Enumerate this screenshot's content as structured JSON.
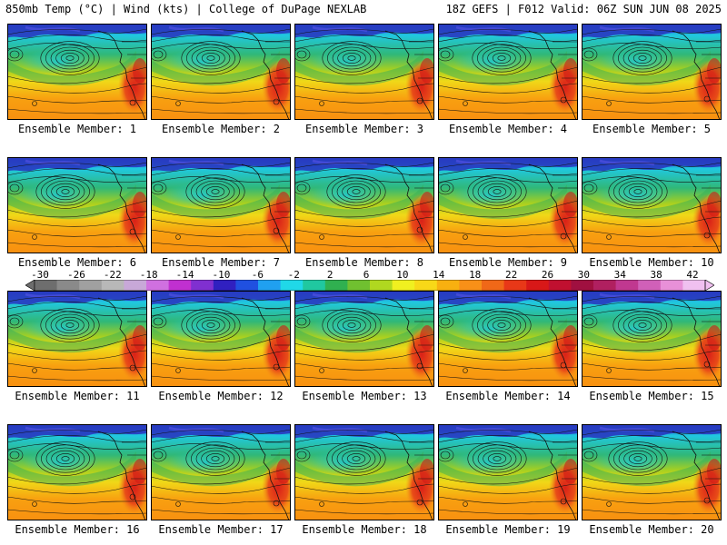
{
  "header": {
    "left": "850mb Temp (°C) | Wind (kts) | College of DuPage NEXLAB",
    "right": "18Z GEFS | F012 Valid: 06Z SUN JUN 08 2025"
  },
  "members": [
    {
      "label": "Ensemble Member: 1"
    },
    {
      "label": "Ensemble Member: 2"
    },
    {
      "label": "Ensemble Member: 3"
    },
    {
      "label": "Ensemble Member: 4"
    },
    {
      "label": "Ensemble Member: 5"
    },
    {
      "label": "Ensemble Member: 6"
    },
    {
      "label": "Ensemble Member: 7"
    },
    {
      "label": "Ensemble Member: 8"
    },
    {
      "label": "Ensemble Member: 9"
    },
    {
      "label": "Ensemble Member: 10"
    },
    {
      "label": "Ensemble Member: 11"
    },
    {
      "label": "Ensemble Member: 12"
    },
    {
      "label": "Ensemble Member: 13"
    },
    {
      "label": "Ensemble Member: 14"
    },
    {
      "label": "Ensemble Member: 15"
    },
    {
      "label": "Ensemble Member: 16"
    },
    {
      "label": "Ensemble Member: 17"
    },
    {
      "label": "Ensemble Member: 18"
    },
    {
      "label": "Ensemble Member: 19"
    },
    {
      "label": "Ensemble Member: 20"
    }
  ],
  "colorbar": {
    "labels": [
      "-30",
      "-26",
      "-22",
      "-18",
      "-14",
      "-10",
      "-6",
      "-2",
      "2",
      "6",
      "10",
      "14",
      "18",
      "22",
      "26",
      "30",
      "34",
      "38",
      "42"
    ],
    "colors": [
      "#6e6e6e",
      "#8a8a8a",
      "#a0a0a0",
      "#b8b8b8",
      "#c8a8d8",
      "#d070e0",
      "#c030d0",
      "#8030d0",
      "#3020c0",
      "#2050e0",
      "#20a0f0",
      "#20d8e8",
      "#20c8a0",
      "#30b050",
      "#70c030",
      "#b0d820",
      "#f0f020",
      "#f8d818",
      "#f8b010",
      "#f89018",
      "#f06818",
      "#e83818",
      "#d81818",
      "#c01030",
      "#a01040",
      "#b02060",
      "#c03890",
      "#d060b8",
      "#e890d8",
      "#f0c0f0"
    ]
  }
}
